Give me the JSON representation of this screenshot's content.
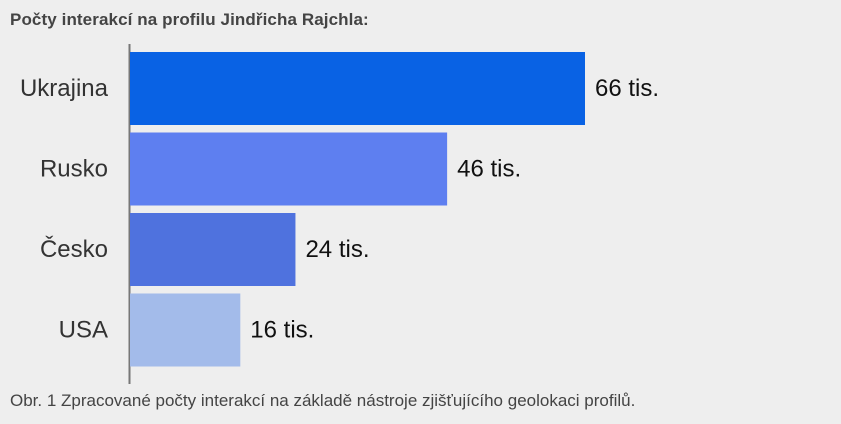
{
  "title": "Počty interakcí na profilu Jindřicha Rajchla:",
  "caption": "Obr. 1 Zpracované počty interakcí na základě nástroje zjišťujícího geolokaci profilů.",
  "chart_data": {
    "type": "bar",
    "orientation": "horizontal",
    "title": "Počty interakcí na profilu Jindřicha Rajchla:",
    "categories": [
      "Ukrajina",
      "Rusko",
      "Česko",
      "USA"
    ],
    "values": [
      66,
      46,
      24,
      16
    ],
    "value_labels": [
      "66 tis.",
      "46 tis.",
      "24 tis.",
      "16 tis."
    ],
    "colors": [
      "#0962e4",
      "#5e7ff0",
      "#4f72de",
      "#a3bbea"
    ],
    "xlim": [
      0,
      66
    ],
    "grid": false,
    "legend": "none",
    "xlabel": "",
    "ylabel": ""
  }
}
